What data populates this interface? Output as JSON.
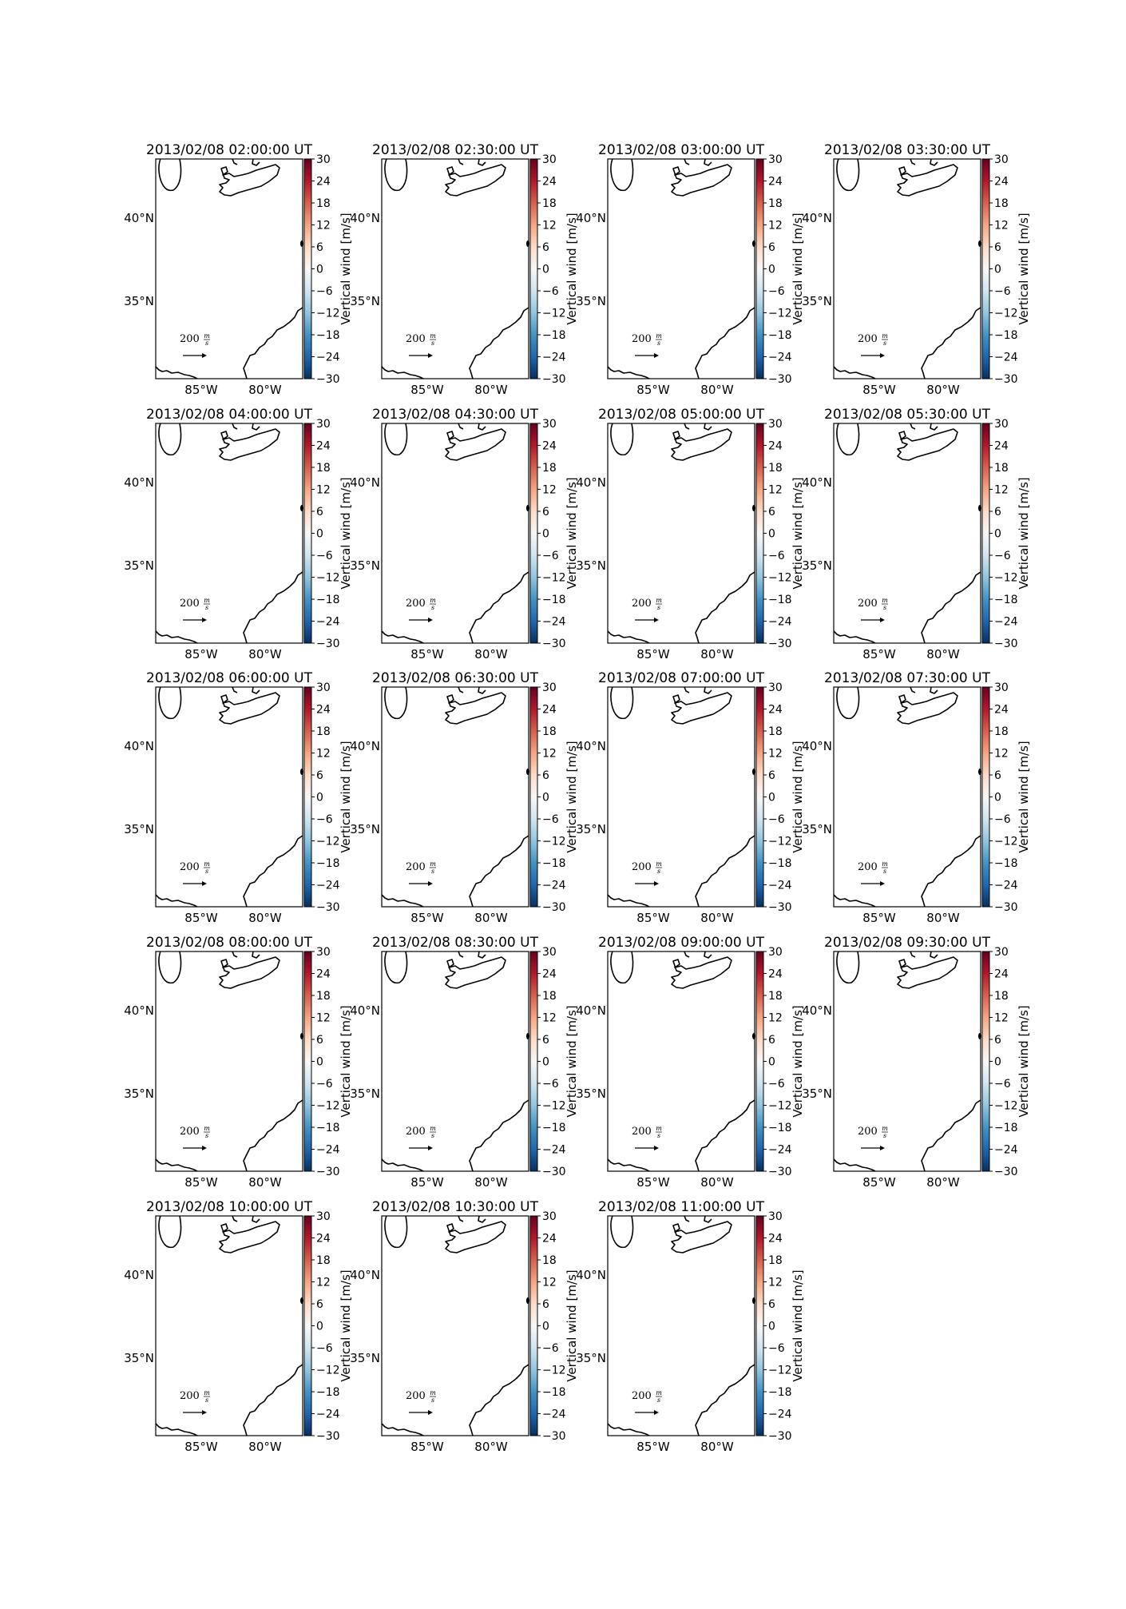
{
  "figure": {
    "panels": [
      {
        "title": "2013/02/08 02:00:00 UT"
      },
      {
        "title": "2013/02/08 02:30:00 UT"
      },
      {
        "title": "2013/02/08 03:00:00 UT"
      },
      {
        "title": "2013/02/08 03:30:00 UT"
      },
      {
        "title": "2013/02/08 04:00:00 UT"
      },
      {
        "title": "2013/02/08 04:30:00 UT"
      },
      {
        "title": "2013/02/08 05:00:00 UT"
      },
      {
        "title": "2013/02/08 05:30:00 UT"
      },
      {
        "title": "2013/02/08 06:00:00 UT"
      },
      {
        "title": "2013/02/08 06:30:00 UT"
      },
      {
        "title": "2013/02/08 07:00:00 UT"
      },
      {
        "title": "2013/02/08 07:30:00 UT"
      },
      {
        "title": "2013/02/08 08:00:00 UT"
      },
      {
        "title": "2013/02/08 08:30:00 UT"
      },
      {
        "title": "2013/02/08 09:00:00 UT"
      },
      {
        "title": "2013/02/08 09:30:00 UT"
      },
      {
        "title": "2013/02/08 10:00:00 UT"
      },
      {
        "title": "2013/02/08 10:30:00 UT"
      },
      {
        "title": "2013/02/08 11:00:00 UT"
      }
    ],
    "map": {
      "lat_labels": [
        "40°N",
        "35°N"
      ],
      "lon_labels": [
        "85°W",
        "80°W"
      ],
      "reference_vector": {
        "value": "200",
        "unit_numerator": "m",
        "unit_denominator": "s"
      }
    },
    "colorbar": {
      "label": "Vertical wind [m/s]",
      "ticks": [
        "30",
        "24",
        "18",
        "12",
        "6",
        "0",
        "−6",
        "−12",
        "−18",
        "−24",
        "−30"
      ],
      "colormap": [
        "#67001f",
        "#b2182b",
        "#d6604d",
        "#f4a582",
        "#fddbc7",
        "#f7f7f7",
        "#d1e5f0",
        "#92c5de",
        "#4393c3",
        "#2166ac",
        "#053061"
      ]
    }
  },
  "chart_data": {
    "type": "map",
    "panel_count": 19,
    "colorbar_range": [
      -30,
      30
    ],
    "colorbar_ticks": [
      30,
      24,
      18,
      12,
      6,
      0,
      -6,
      -12,
      -18,
      -24,
      -30
    ],
    "colorbar_label": "Vertical wind [m/s]",
    "reference_vector": 200
  }
}
